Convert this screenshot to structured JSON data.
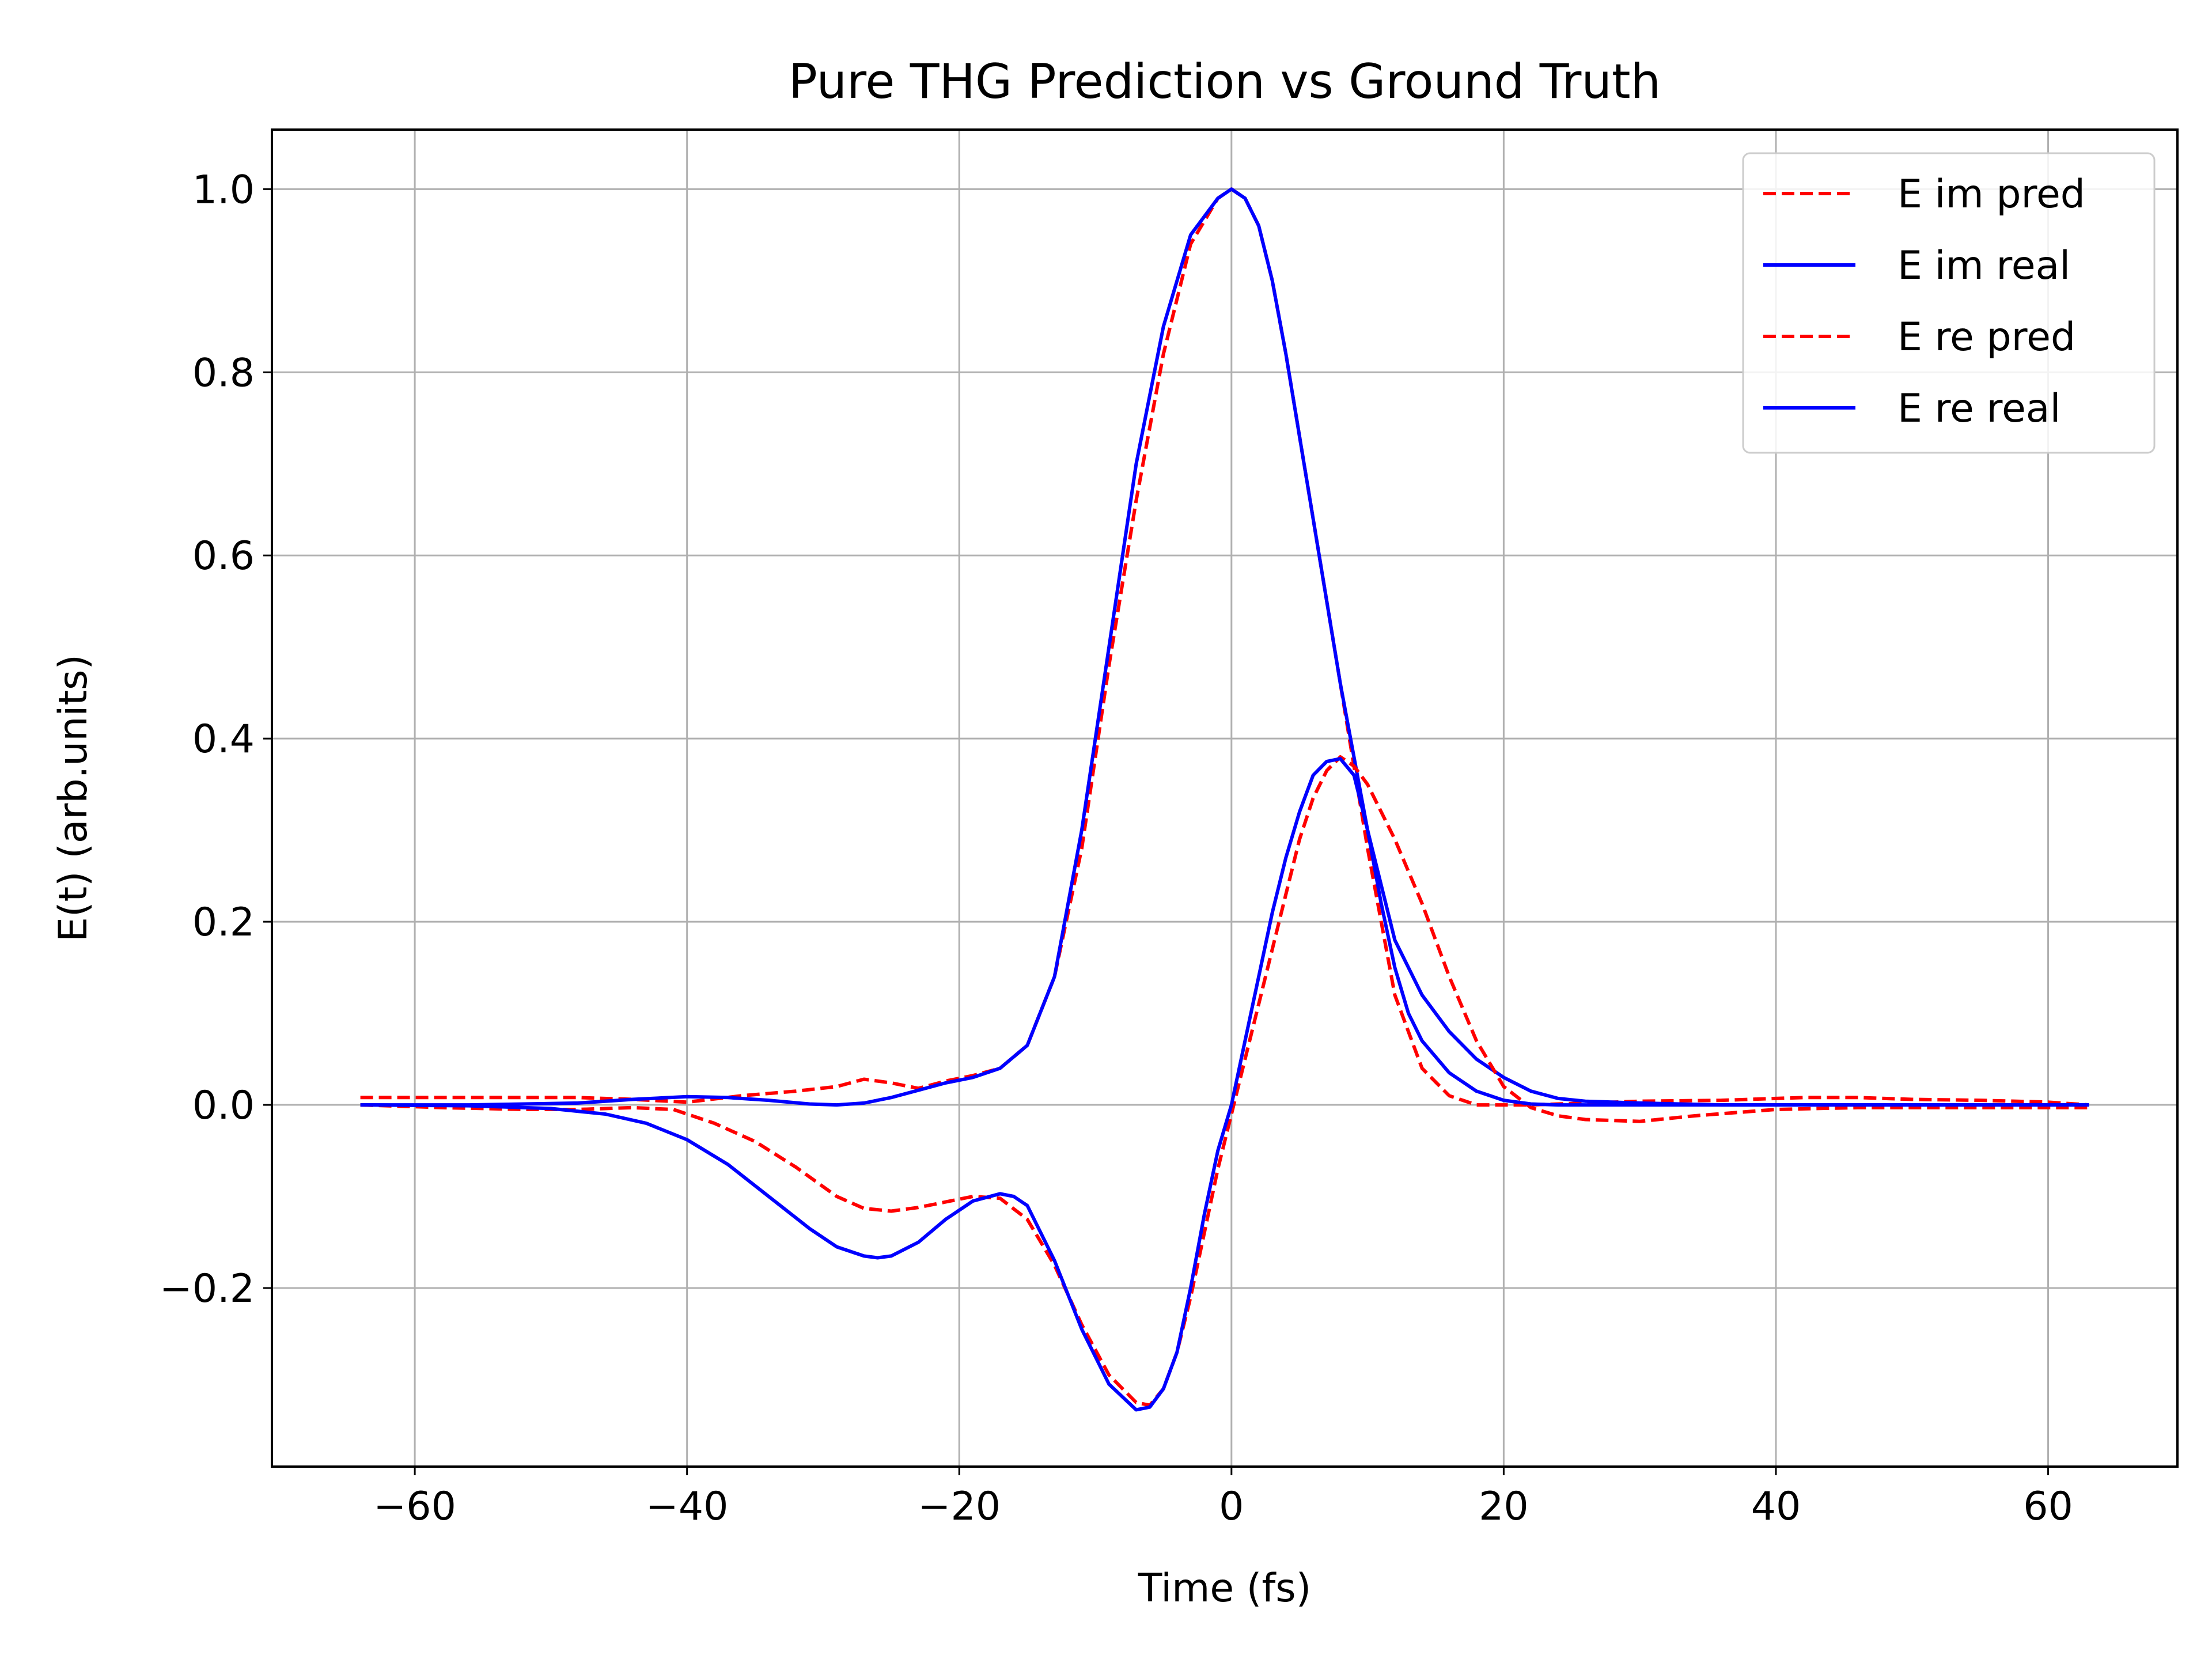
{
  "chart_data": {
    "type": "line",
    "title": "Pure THG Prediction vs Ground Truth",
    "xlabel": "Time (fs)",
    "ylabel": "E(t) (arb.units)",
    "xlim": [
      -70.5,
      69.5
    ],
    "ylim": [
      -0.395,
      1.065
    ],
    "xticks": [
      -60,
      -40,
      -20,
      0,
      20,
      40,
      60
    ],
    "yticks": [
      -0.2,
      0.0,
      0.2,
      0.4,
      0.6,
      0.8,
      1.0
    ],
    "xtick_labels": [
      "−60",
      "−40",
      "−20",
      "0",
      "20",
      "40",
      "60"
    ],
    "ytick_labels": [
      "−0.2",
      "0.0",
      "0.2",
      "0.4",
      "0.6",
      "0.8",
      "1.0"
    ],
    "grid": true,
    "legend_position": "top-right",
    "series": [
      {
        "name": "E im pred",
        "color": "#ff0000",
        "style": "dashed",
        "x": [
          -64,
          -60,
          -56,
          -52,
          -48,
          -44,
          -40,
          -36,
          -32,
          -29,
          -27,
          -25,
          -23,
          -21,
          -19,
          -17,
          -15,
          -13,
          -11,
          -9,
          -7,
          -5,
          -3,
          -1,
          0,
          1,
          2,
          3,
          4,
          6,
          8,
          10,
          12,
          14,
          16,
          18,
          20,
          22,
          26,
          30,
          36,
          42,
          46,
          50,
          55,
          60,
          63
        ],
        "y": [
          0.008,
          0.008,
          0.008,
          0.008,
          0.008,
          0.006,
          0.003,
          0.01,
          0.015,
          0.02,
          0.028,
          0.024,
          0.018,
          0.026,
          0.032,
          0.04,
          0.065,
          0.14,
          0.28,
          0.48,
          0.66,
          0.82,
          0.94,
          0.99,
          1.0,
          0.99,
          0.96,
          0.9,
          0.82,
          0.64,
          0.46,
          0.28,
          0.12,
          0.04,
          0.01,
          0.0,
          0.0,
          0.0,
          0.002,
          0.004,
          0.005,
          0.008,
          0.008,
          0.006,
          0.005,
          0.003,
          0.0
        ]
      },
      {
        "name": "E im real",
        "color": "#0000ff",
        "style": "solid",
        "x": [
          -64,
          -56,
          -48,
          -44,
          -40,
          -37,
          -34,
          -31,
          -29,
          -27,
          -25,
          -23,
          -21,
          -19,
          -17,
          -15,
          -13,
          -11,
          -9,
          -7,
          -5,
          -3,
          -1,
          0,
          1,
          2,
          3,
          4,
          6,
          8,
          10,
          12,
          14,
          16,
          18,
          20,
          22,
          24,
          26,
          30,
          36,
          44,
          52,
          58,
          63
        ],
        "y": [
          0.0,
          0.0,
          0.002,
          0.006,
          0.009,
          0.008,
          0.005,
          0.001,
          0.0,
          0.002,
          0.008,
          0.016,
          0.024,
          0.03,
          0.04,
          0.065,
          0.14,
          0.3,
          0.5,
          0.7,
          0.85,
          0.95,
          0.99,
          1.0,
          0.99,
          0.96,
          0.9,
          0.82,
          0.64,
          0.46,
          0.3,
          0.18,
          0.12,
          0.08,
          0.05,
          0.03,
          0.015,
          0.007,
          0.004,
          0.002,
          0.0,
          0.0,
          0.0,
          0.0,
          0.0
        ]
      },
      {
        "name": "E re pred",
        "color": "#ff0000",
        "style": "dashed",
        "x": [
          -64,
          -58,
          -52,
          -48,
          -44,
          -41,
          -38,
          -35,
          -32,
          -29,
          -27,
          -25,
          -23,
          -21,
          -19,
          -17,
          -15,
          -13,
          -11,
          -9,
          -7,
          -6,
          -5,
          -4,
          -3,
          -2,
          -1,
          0,
          1,
          2,
          3,
          4,
          5,
          6,
          7,
          8,
          9,
          10,
          11,
          12,
          14,
          16,
          18,
          20,
          22,
          24,
          26,
          30,
          34,
          40,
          46,
          52,
          58,
          63
        ],
        "y": [
          0.0,
          -0.003,
          -0.005,
          -0.005,
          -0.003,
          -0.005,
          -0.02,
          -0.04,
          -0.068,
          -0.1,
          -0.113,
          -0.116,
          -0.112,
          -0.106,
          -0.1,
          -0.102,
          -0.125,
          -0.175,
          -0.24,
          -0.295,
          -0.325,
          -0.328,
          -0.31,
          -0.27,
          -0.21,
          -0.14,
          -0.07,
          -0.01,
          0.05,
          0.11,
          0.17,
          0.23,
          0.29,
          0.335,
          0.365,
          0.38,
          0.37,
          0.35,
          0.32,
          0.29,
          0.22,
          0.14,
          0.07,
          0.02,
          -0.003,
          -0.012,
          -0.016,
          -0.018,
          -0.012,
          -0.005,
          -0.003,
          -0.003,
          -0.003,
          -0.003
        ]
      },
      {
        "name": "E re real",
        "color": "#0000ff",
        "style": "solid",
        "x": [
          -64,
          -56,
          -50,
          -46,
          -43,
          -40,
          -37,
          -34,
          -31,
          -29,
          -27,
          -26,
          -25,
          -23,
          -21,
          -19,
          -17,
          -16,
          -15,
          -13,
          -11,
          -9,
          -7,
          -6,
          -5,
          -4,
          -3,
          -2,
          -1,
          0,
          1,
          2,
          3,
          4,
          5,
          6,
          7,
          8,
          9,
          10,
          11,
          12,
          13,
          14,
          16,
          18,
          20,
          22,
          24,
          28,
          34,
          44,
          54,
          63
        ],
        "y": [
          0.0,
          -0.001,
          -0.004,
          -0.01,
          -0.02,
          -0.038,
          -0.065,
          -0.1,
          -0.135,
          -0.155,
          -0.165,
          -0.167,
          -0.165,
          -0.15,
          -0.125,
          -0.105,
          -0.097,
          -0.1,
          -0.11,
          -0.17,
          -0.245,
          -0.305,
          -0.333,
          -0.33,
          -0.31,
          -0.27,
          -0.2,
          -0.12,
          -0.05,
          0.0,
          0.07,
          0.14,
          0.21,
          0.27,
          0.32,
          0.36,
          0.375,
          0.378,
          0.36,
          0.3,
          0.22,
          0.15,
          0.1,
          0.07,
          0.035,
          0.015,
          0.005,
          0.001,
          0.0,
          0.0,
          0.0,
          0.0,
          0.0,
          0.0
        ]
      }
    ]
  }
}
